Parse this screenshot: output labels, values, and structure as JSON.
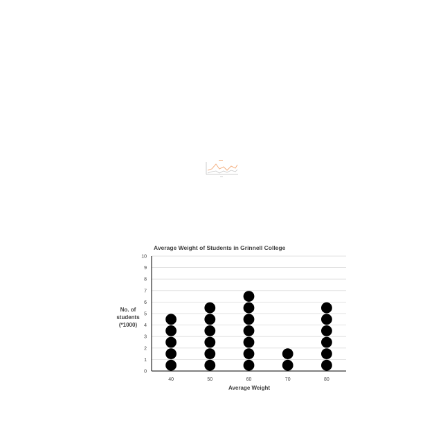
{
  "chart_data": {
    "type": "scatter",
    "subtype": "dot-plot",
    "title": "Average Weight of Students in Grinnell College",
    "xlabel": "Average Weight",
    "ylabel_lines": [
      "No. of",
      "students",
      "(*1000)"
    ],
    "categories": [
      "40",
      "50",
      "60",
      "70",
      "80"
    ],
    "values": [
      5,
      6,
      7,
      2,
      6
    ],
    "ylim": [
      0,
      10
    ],
    "yticks": [
      "0",
      "1",
      "2",
      "3",
      "4",
      "5",
      "6",
      "7",
      "8",
      "9",
      "10"
    ],
    "grid": true,
    "legend": "none",
    "colors": {
      "dot": "#000000",
      "grid": "#d9d9d9",
      "axis": "#000000",
      "text": "#404040"
    }
  }
}
